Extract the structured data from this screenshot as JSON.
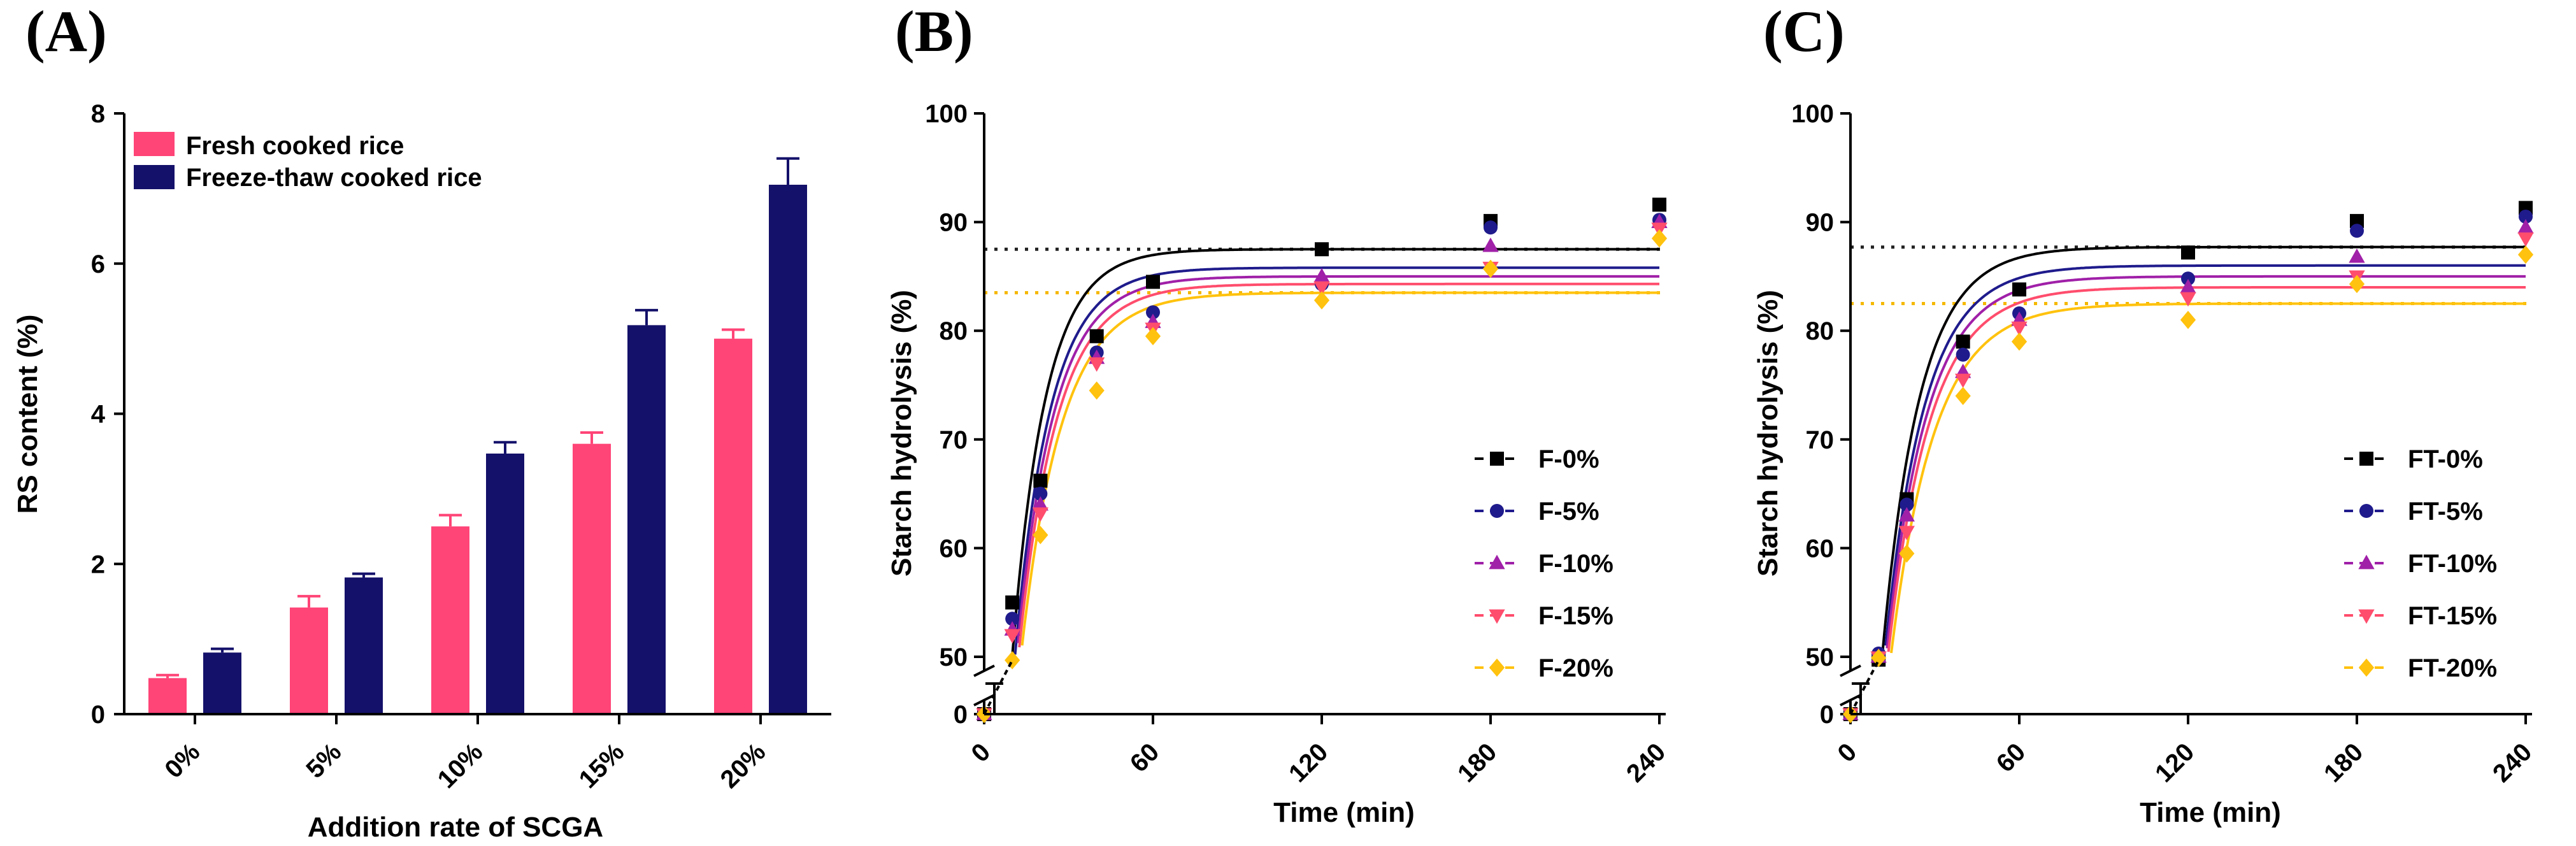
{
  "chart_data": [
    {
      "panel": "(A)",
      "type": "bar",
      "xlabel": "Addition rate of SCGA",
      "ylabel": "RS content (%)",
      "ylim": [
        0,
        8
      ],
      "yticks": [
        "0",
        "2",
        "4",
        "6",
        "8"
      ],
      "categories": [
        "0%",
        "5%",
        "10%",
        "15%",
        "20%"
      ],
      "legend_position": "top-left",
      "series": [
        {
          "name": "Fresh cooked rice",
          "color": "#ff4477",
          "values": [
            0.48,
            1.42,
            2.5,
            3.6,
            5.0
          ],
          "errors": [
            0.04,
            0.15,
            0.15,
            0.15,
            0.12
          ]
        },
        {
          "name": "Freeze-thaw cooked rice",
          "color": "#14116a",
          "values": [
            0.82,
            1.82,
            3.47,
            5.18,
            7.05
          ],
          "errors": [
            0.05,
            0.05,
            0.15,
            0.2,
            0.35
          ]
        }
      ]
    },
    {
      "panel": "(B)",
      "type": "scatter",
      "xlabel": "Time (min)",
      "ylabel": "Starch hydrolysis (%)",
      "xticks": [
        "0",
        "60",
        "120",
        "180",
        "240"
      ],
      "yticks": [
        "0",
        "50",
        "60",
        "70",
        "80",
        "90",
        "100"
      ],
      "axis_break": "0-50",
      "legend_position": "bottom-right",
      "dashed_ref_lines": [
        {
          "y": 87.5,
          "color": "#222222"
        },
        {
          "y": 83.5,
          "color": "#f5b800"
        }
      ],
      "x": [
        0,
        10,
        20,
        40,
        60,
        120,
        180,
        240
      ],
      "series": [
        {
          "name": "F-0%",
          "color": "#000000",
          "marker": "square",
          "values": [
            0,
            55,
            66.2,
            79.5,
            84.5,
            87.5,
            90.1,
            91.6
          ],
          "fit_plateau": 87.5,
          "fit_k": 0.085
        },
        {
          "name": "F-5%",
          "color": "#1f1b8c",
          "marker": "circle",
          "values": [
            0,
            53.5,
            65,
            78,
            81.7,
            84.3,
            89.5,
            90.2
          ],
          "fit_plateau": 85.8,
          "fit_k": 0.08
        },
        {
          "name": "F-10%",
          "color": "#a020a8",
          "marker": "triangle-up",
          "values": [
            0,
            52.5,
            64,
            77.5,
            80.8,
            85,
            87.8,
            90
          ],
          "fit_plateau": 85.0,
          "fit_k": 0.077
        },
        {
          "name": "F-15%",
          "color": "#ff4d6d",
          "marker": "triangle-down",
          "values": [
            0,
            52,
            63.2,
            77,
            80.2,
            84,
            85.8,
            89.4
          ],
          "fit_plateau": 84.3,
          "fit_k": 0.074
        },
        {
          "name": "F-20%",
          "color": "#ffc20e",
          "marker": "diamond",
          "values": [
            0,
            47,
            61.2,
            74.5,
            79.5,
            82.8,
            85.7,
            88.5
          ],
          "fit_plateau": 83.5,
          "fit_k": 0.07
        }
      ]
    },
    {
      "panel": "(C)",
      "type": "scatter",
      "xlabel": "Time (min)",
      "ylabel": "Starch hydrolysis (%)",
      "xticks": [
        "0",
        "60",
        "120",
        "180",
        "240"
      ],
      "yticks": [
        "0",
        "50",
        "60",
        "70",
        "80",
        "90",
        "100"
      ],
      "axis_break": "0-50",
      "legend_position": "bottom-right",
      "dashed_ref_lines": [
        {
          "y": 87.7,
          "color": "#222222"
        },
        {
          "y": 82.5,
          "color": "#f5b800"
        }
      ],
      "x": [
        0,
        10,
        20,
        40,
        60,
        120,
        180,
        240
      ],
      "series": [
        {
          "name": "FT-0%",
          "color": "#000000",
          "marker": "square",
          "values": [
            0,
            47.5,
            64.5,
            79,
            83.8,
            87.2,
            90.1,
            91.3
          ],
          "fit_plateau": 87.7,
          "fit_k": 0.075
        },
        {
          "name": "FT-5%",
          "color": "#1f1b8c",
          "marker": "circle",
          "values": [
            0,
            50.3,
            64,
            77.8,
            81.6,
            84.8,
            89.2,
            90.5
          ],
          "fit_plateau": 86.0,
          "fit_k": 0.072
        },
        {
          "name": "FT-10%",
          "color": "#a020a8",
          "marker": "triangle-up",
          "values": [
            0,
            50,
            63,
            76.2,
            81,
            84,
            86.8,
            89.5
          ],
          "fit_plateau": 85.0,
          "fit_k": 0.07
        },
        {
          "name": "FT-15%",
          "color": "#ff4d6d",
          "marker": "triangle-down",
          "values": [
            0,
            49.5,
            61.5,
            75.5,
            80.3,
            83,
            85,
            88.5
          ],
          "fit_plateau": 84.0,
          "fit_k": 0.068
        },
        {
          "name": "FT-20%",
          "color": "#ffc20e",
          "marker": "diamond",
          "values": [
            0,
            49,
            59.5,
            74,
            79,
            81,
            84.3,
            87
          ],
          "fit_plateau": 82.5,
          "fit_k": 0.065
        }
      ]
    }
  ]
}
